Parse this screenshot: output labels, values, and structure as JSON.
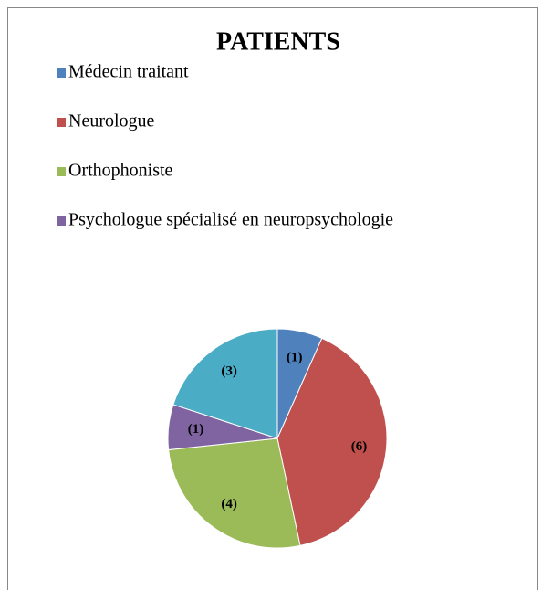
{
  "chart_data": {
    "type": "pie",
    "title": "PATIENTS",
    "categories": [
      "Médecin traitant",
      "Neurologue",
      "Orthophoniste",
      "Psychologue spécialisé en neuropsychologie",
      null
    ],
    "values": [
      1,
      6,
      4,
      1,
      3
    ],
    "value_labels": [
      "(1)",
      "(6)",
      "(4)",
      "(1)",
      "(3)"
    ],
    "colors": [
      "#4f81bd",
      "#c0504d",
      "#9bbb59",
      "#8064a2",
      "#4bacc6"
    ],
    "legend": "top-left"
  }
}
